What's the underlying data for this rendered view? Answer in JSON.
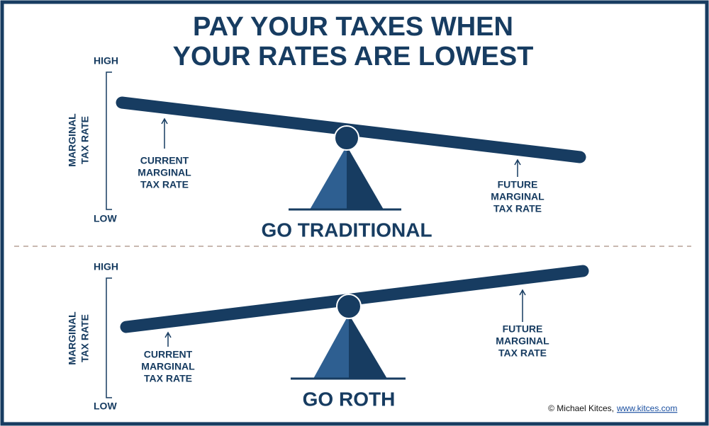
{
  "title": [
    "PAY YOUR TAXES WHEN",
    "YOUR RATES ARE LOWEST"
  ],
  "panels": [
    {
      "axis": {
        "high": "HIGH",
        "low": "LOW",
        "label": [
          "MARGINAL",
          "TAX RATE"
        ]
      },
      "current": [
        "CURRENT",
        "MARGINAL",
        "TAX RATE"
      ],
      "future": [
        "FUTURE",
        "MARGINAL",
        "TAX RATE"
      ],
      "caption": "GO TRADITIONAL"
    },
    {
      "axis": {
        "high": "HIGH",
        "low": "LOW",
        "label": [
          "MARGINAL",
          "TAX RATE"
        ]
      },
      "current": [
        "CURRENT",
        "MARGINAL",
        "TAX RATE"
      ],
      "future": [
        "FUTURE",
        "MARGINAL",
        "TAX RATE"
      ],
      "caption": "GO ROTH"
    }
  ],
  "credit": {
    "text": "© Michael Kitces,",
    "link": "www.kitces.com"
  }
}
